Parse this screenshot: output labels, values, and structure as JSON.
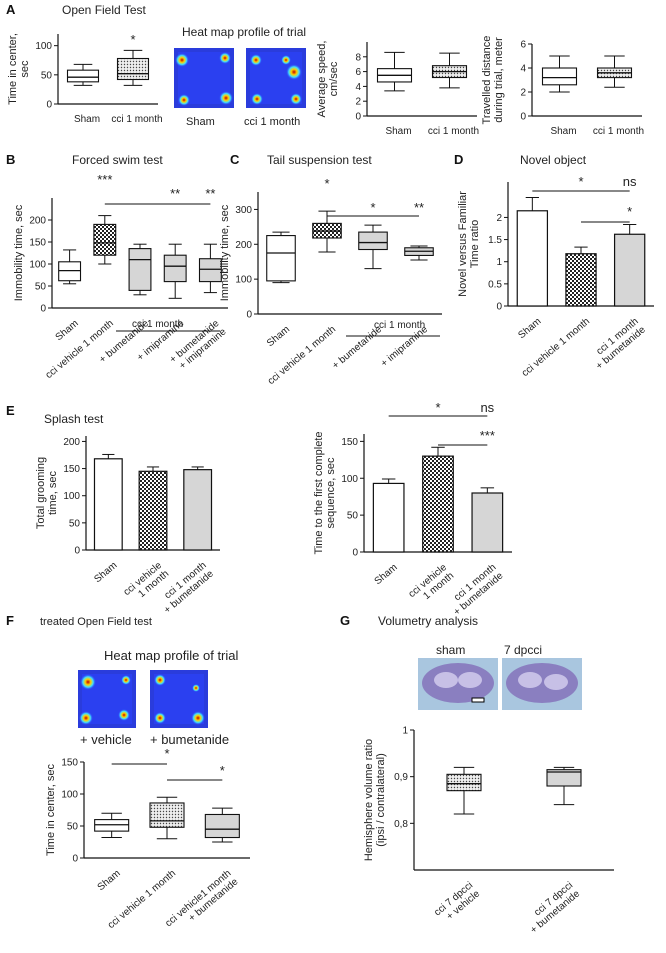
{
  "panels": {
    "A": {
      "letter": "A",
      "title": "Open Field Test",
      "heatmap_title": "Heat map profile of trial",
      "heatmap_labels": [
        "Sham",
        "cci 1 month"
      ]
    },
    "B": {
      "letter": "B",
      "title": "Forced swim test",
      "group_label": "cci 1 month"
    },
    "C": {
      "letter": "C",
      "title": "Tail suspension test",
      "group_label": "cci 1 month"
    },
    "D": {
      "letter": "D",
      "title": "Novel object"
    },
    "E": {
      "letter": "E",
      "title": "Splash test"
    },
    "F": {
      "letter": "F",
      "title": "treated Open Field test",
      "heatmap_title": "Heat map profile of trial",
      "heatmap_labels": [
        "+ vehicle",
        "+ bumetanide"
      ]
    },
    "G": {
      "letter": "G",
      "title": "Volumetry analysis",
      "image_labels": [
        "sham",
        "7 dpcci"
      ]
    }
  },
  "colors": {
    "dark_fill": "#333333",
    "light_fill": "#d6d6d6",
    "white_fill": "#ffffff",
    "stroke": "#111111"
  },
  "chart_data": [
    {
      "id": "A1",
      "type": "box",
      "ylabel": "Time in center,\nsec",
      "ylim": [
        0,
        120
      ],
      "yticks": [
        0,
        50,
        100
      ],
      "categories": [
        "Sham",
        "cci 1 month"
      ],
      "boxes": [
        {
          "min": 32,
          "q1": 38,
          "median": 46,
          "q3": 58,
          "max": 68,
          "fill": "white"
        },
        {
          "min": 32,
          "q1": 42,
          "median": 52,
          "q3": 78,
          "max": 92,
          "fill": "dots"
        }
      ],
      "sig": [
        {
          "text": "*",
          "at": 1
        }
      ]
    },
    {
      "id": "A2",
      "type": "box",
      "ylabel": "Average speed,\ncm/sec",
      "ylim": [
        0,
        10
      ],
      "yticks": [
        0,
        2,
        4,
        6,
        8
      ],
      "categories": [
        "Sham",
        "cci 1 month"
      ],
      "boxes": [
        {
          "min": 3.4,
          "q1": 4.6,
          "median": 5.5,
          "q3": 6.4,
          "max": 8.6,
          "fill": "white"
        },
        {
          "min": 3.8,
          "q1": 5.2,
          "median": 6.0,
          "q3": 6.8,
          "max": 8.5,
          "fill": "dots"
        }
      ]
    },
    {
      "id": "A3",
      "type": "box",
      "ylabel": "Travelled distance\nduring trial, meter",
      "ylim": [
        0,
        6
      ],
      "yticks": [
        0,
        2,
        4,
        6
      ],
      "categories": [
        "Sham",
        "cci 1 month"
      ],
      "boxes": [
        {
          "min": 2.0,
          "q1": 2.6,
          "median": 3.2,
          "q3": 4.0,
          "max": 5.0,
          "fill": "white"
        },
        {
          "min": 2.4,
          "q1": 3.2,
          "median": 3.6,
          "q3": 4.0,
          "max": 5.0,
          "fill": "dots"
        }
      ]
    },
    {
      "id": "B",
      "type": "box",
      "ylabel": "Immobility time, sec",
      "ylim": [
        0,
        250
      ],
      "yticks": [
        0,
        50,
        100,
        150,
        200
      ],
      "categories": [
        "Sham",
        "cci vehicle 1 month",
        "+ bumetanide",
        "+ imipramine",
        "+ bumetanide\n+ imipramine"
      ],
      "boxes": [
        {
          "min": 55,
          "q1": 62,
          "median": 85,
          "q3": 105,
          "max": 132,
          "fill": "white"
        },
        {
          "min": 100,
          "q1": 120,
          "median": 148,
          "q3": 190,
          "max": 210,
          "fill": "checker"
        },
        {
          "min": 30,
          "q1": 40,
          "median": 110,
          "q3": 135,
          "max": 145,
          "fill": "light"
        },
        {
          "min": 22,
          "q1": 60,
          "median": 95,
          "q3": 120,
          "max": 145,
          "fill": "light"
        },
        {
          "min": 35,
          "q1": 60,
          "median": 88,
          "q3": 112,
          "max": 145,
          "fill": "light"
        }
      ],
      "sig": [
        {
          "text": "***",
          "at": 1
        },
        {
          "text": "**",
          "at": 3
        },
        {
          "text": "**",
          "at": 4
        }
      ]
    },
    {
      "id": "C",
      "type": "box",
      "ylabel": "Immobility time, sec",
      "ylim": [
        0,
        350
      ],
      "yticks": [
        0,
        100,
        200,
        300
      ],
      "categories": [
        "Sham",
        "cci vehicle 1 month",
        "+ bumetanide",
        "+ imipramine"
      ],
      "boxes": [
        {
          "min": 90,
          "q1": 95,
          "median": 175,
          "q3": 225,
          "max": 235,
          "fill": "white"
        },
        {
          "min": 178,
          "q1": 218,
          "median": 238,
          "q3": 260,
          "max": 295,
          "fill": "checker"
        },
        {
          "min": 130,
          "q1": 185,
          "median": 205,
          "q3": 235,
          "max": 255,
          "fill": "light"
        },
        {
          "min": 155,
          "q1": 168,
          "median": 180,
          "q3": 190,
          "max": 195,
          "fill": "light"
        }
      ],
      "sig": [
        {
          "text": "*",
          "at": 1
        },
        {
          "text": "*",
          "at": 2
        },
        {
          "text": "**",
          "at": 3
        }
      ]
    },
    {
      "id": "D",
      "type": "bar",
      "ylabel": "Novel versus Familiar\nTime ratio",
      "ylim": [
        0,
        2.8
      ],
      "yticks": [
        0.0,
        0.5,
        1.0,
        1.5,
        2.0
      ],
      "categories": [
        "Sham",
        "cci vehicle 1 month",
        "cci 1 month\n+ bumetanide"
      ],
      "values": [
        2.15,
        1.18,
        1.62
      ],
      "errors": [
        0.3,
        0.15,
        0.22
      ],
      "fills": [
        "white",
        "checker",
        "light"
      ],
      "sig": [
        {
          "text": "*",
          "at": 1
        },
        {
          "text": "ns",
          "at": 2
        },
        {
          "text": "*",
          "at": 2
        }
      ]
    },
    {
      "id": "E1",
      "type": "bar",
      "ylabel": "Total grooming\ntime, sec",
      "ylim": [
        0,
        210
      ],
      "yticks": [
        0,
        50,
        100,
        150,
        200
      ],
      "categories": [
        "Sham",
        "cci vehicle\n1 month",
        "cci 1 month\n+ bumetanide"
      ],
      "values": [
        168,
        145,
        148
      ],
      "errors": [
        8,
        8,
        5
      ],
      "fills": [
        "white",
        "checker",
        "light"
      ]
    },
    {
      "id": "E2",
      "type": "bar",
      "ylabel": "Time to the first complete\nsequence, sec",
      "ylim": [
        0,
        160
      ],
      "yticks": [
        0,
        50,
        100,
        150
      ],
      "categories": [
        "Sham",
        "cci vehicle\n1 month",
        "cci 1 month\n+ bumetanide"
      ],
      "values": [
        93,
        130,
        80
      ],
      "errors": [
        6,
        12,
        7
      ],
      "fills": [
        "white",
        "checker",
        "light"
      ],
      "sig": [
        {
          "text": "*",
          "at": 1
        },
        {
          "text": "ns",
          "at": 2
        },
        {
          "text": "***",
          "at": 2
        }
      ]
    },
    {
      "id": "F",
      "type": "box",
      "ylabel": "Time in center, sec",
      "ylim": [
        0,
        150
      ],
      "yticks": [
        0,
        50,
        100,
        150
      ],
      "categories": [
        "Sham",
        "cci vehicle 1 month",
        "cci  vehicle1 month\n+ bumetanide"
      ],
      "boxes": [
        {
          "min": 32,
          "q1": 42,
          "median": 52,
          "q3": 60,
          "max": 70,
          "fill": "white"
        },
        {
          "min": 30,
          "q1": 48,
          "median": 58,
          "q3": 86,
          "max": 95,
          "fill": "dots"
        },
        {
          "min": 25,
          "q1": 32,
          "median": 45,
          "q3": 68,
          "max": 78,
          "fill": "light"
        }
      ],
      "sig": [
        {
          "text": "*",
          "at": 1
        },
        {
          "text": "*",
          "at": 2
        }
      ]
    },
    {
      "id": "G",
      "type": "box",
      "ylabel": "Hemisphere volume ratio\n(ipsi / contralateral)",
      "ylim": [
        0.7,
        1.0
      ],
      "yticks": [
        0.8,
        0.9,
        1.0
      ],
      "yticklabels": [
        "0,8",
        "0,9",
        "1"
      ],
      "categories": [
        "cci 7 dpcci\n+ vehicle",
        "cci 7 dpcci\n+ bumetanide"
      ],
      "boxes": [
        {
          "min": 0.82,
          "q1": 0.87,
          "median": 0.885,
          "q3": 0.905,
          "max": 0.92,
          "fill": "dots"
        },
        {
          "min": 0.84,
          "q1": 0.88,
          "median": 0.91,
          "q3": 0.915,
          "max": 0.92,
          "fill": "light"
        }
      ]
    }
  ]
}
